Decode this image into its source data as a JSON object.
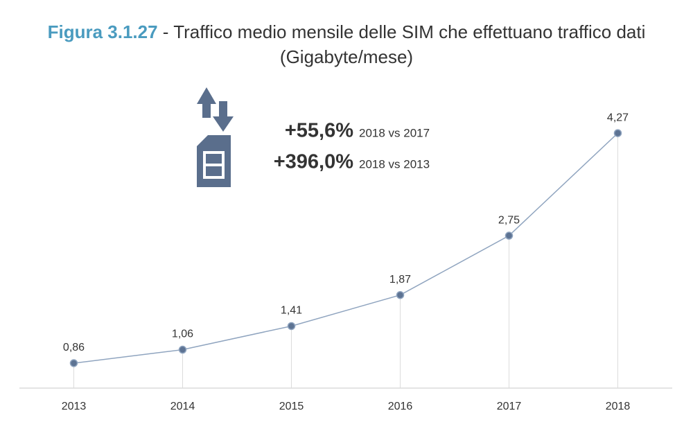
{
  "chart_data": {
    "type": "line",
    "title": {
      "figure": "Figura 3.1.27",
      "text": "- Traffico medio mensile delle SIM che effettuano traffico dati"
    },
    "subtitle": "(Gigabyte/mese)",
    "annotations": [
      {
        "text": "+55,6%",
        "note": "2018 vs 2017"
      },
      {
        "text": "+396,0%",
        "note": "2018 vs 2013"
      }
    ],
    "categories": [
      "2013",
      "2014",
      "2015",
      "2016",
      "2017",
      "2018"
    ],
    "values": [
      0.86,
      1.06,
      1.41,
      1.87,
      2.75,
      4.27
    ],
    "value_labels": [
      "0,86",
      "1,06",
      "1,41",
      "1,87",
      "2,75",
      "4,27"
    ],
    "color": "#8fa4bf",
    "marker_color": "#5d7393",
    "ylim": [
      0.49,
      4.6
    ]
  }
}
